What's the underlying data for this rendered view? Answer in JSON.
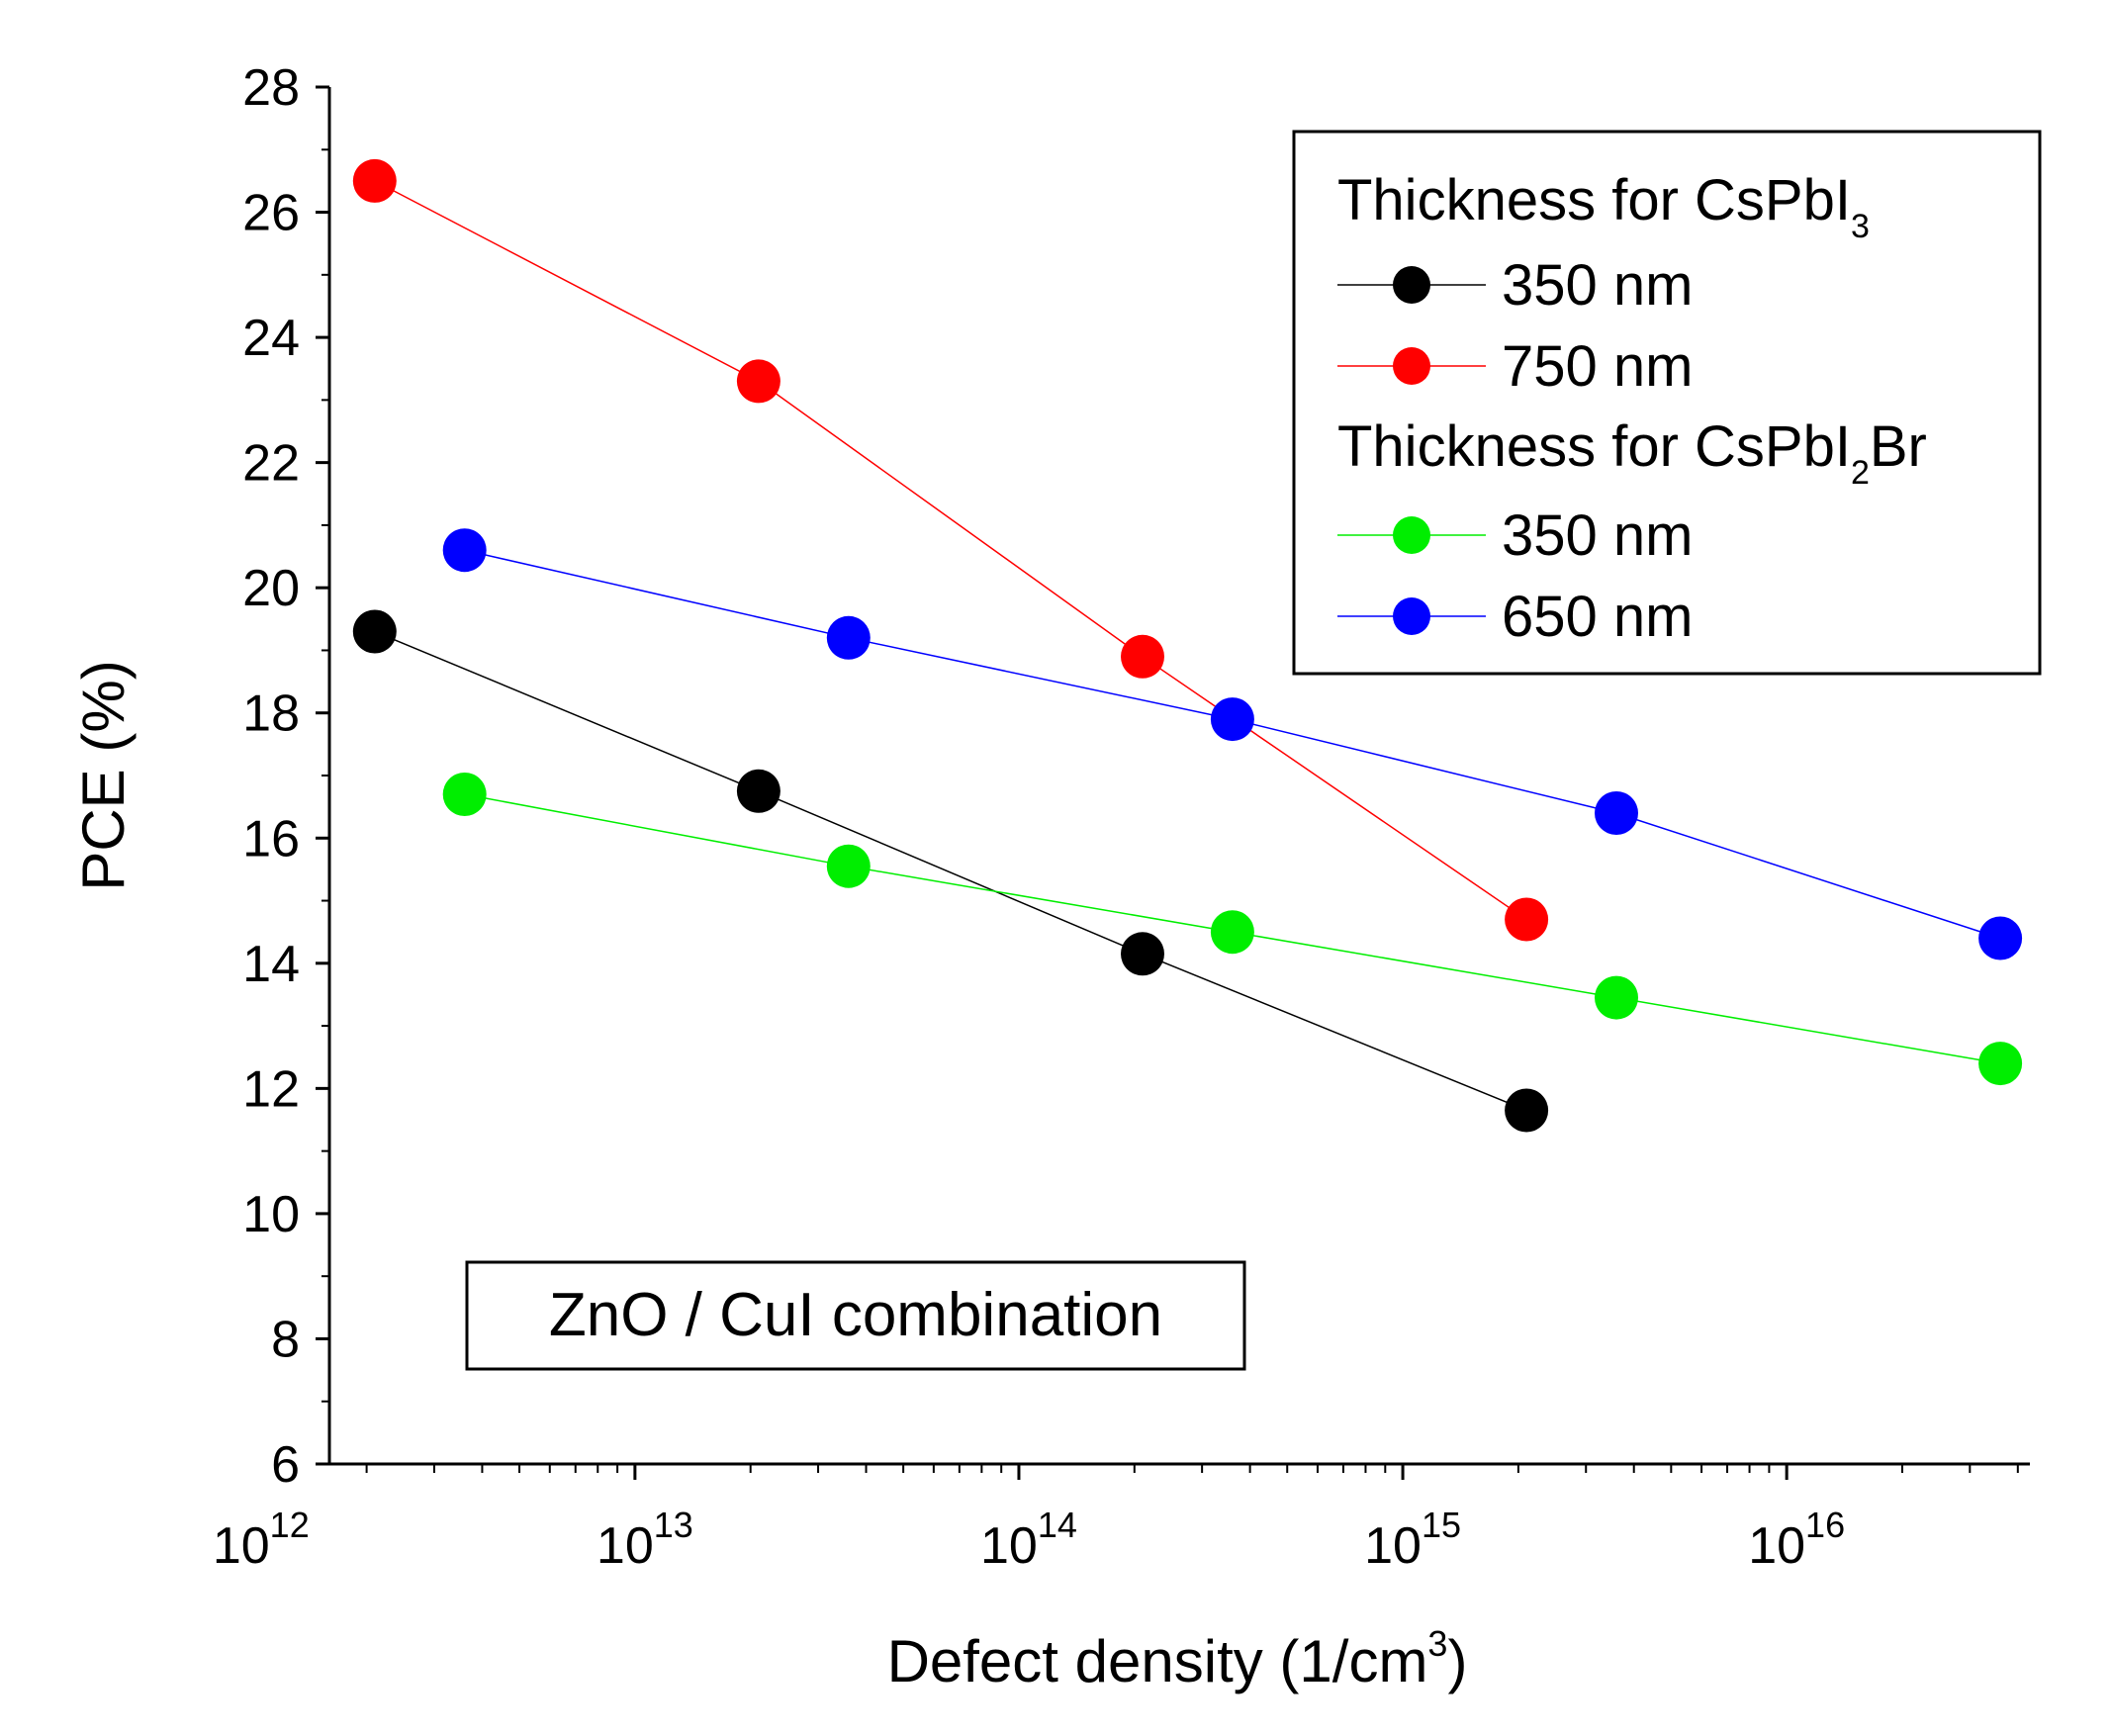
{
  "chart_data": {
    "type": "scatter",
    "xscale": "log",
    "xlim": [
      1600000000000.0,
      4.3e+16
    ],
    "ylim": [
      6,
      28
    ],
    "xlabel": {
      "main": "Defect density (1/cm",
      "sup": "3",
      "end": ")"
    },
    "ylabel": "PCE (%)",
    "y_ticks": [
      "6",
      "8",
      "10",
      "12",
      "14",
      "16",
      "18",
      "20",
      "22",
      "24",
      "26",
      "28"
    ],
    "x_ticks": [
      {
        "base": "10",
        "exp": "12"
      },
      {
        "base": "10",
        "exp": "13"
      },
      {
        "base": "10",
        "exp": "14"
      },
      {
        "base": "10",
        "exp": "15"
      },
      {
        "base": "10",
        "exp": "16"
      }
    ],
    "legend_groups": [
      {
        "title": {
          "main": "Thickness for CsPbI",
          "sub": "3",
          "end": ""
        }
      },
      {
        "title": {
          "main": "Thickness for CsPbI",
          "sub": "2",
          "end": "Br"
        }
      }
    ],
    "series": [
      {
        "name": "350 nm",
        "group": 0,
        "color": "#000000",
        "x": [
          2100000000000.0,
          21000000000000.0,
          210000000000000.0,
          2100000000000000.0
        ],
        "y": [
          19.3,
          16.75,
          14.15,
          11.65
        ]
      },
      {
        "name": "750 nm",
        "group": 0,
        "color": "#ff0000",
        "x": [
          2100000000000.0,
          21000000000000.0,
          210000000000000.0,
          2100000000000000.0
        ],
        "y": [
          26.5,
          23.3,
          18.9,
          14.7
        ]
      },
      {
        "name": "350 nm",
        "group": 1,
        "color": "#00ee00",
        "x": [
          3600000000000.0,
          36000000000000.0,
          360000000000000.0,
          3600000000000000.0,
          3.6e+16
        ],
        "y": [
          16.7,
          15.55,
          14.5,
          13.45,
          12.4
        ]
      },
      {
        "name": "650 nm",
        "group": 1,
        "color": "#0000ff",
        "x": [
          3600000000000.0,
          36000000000000.0,
          360000000000000.0,
          3600000000000000.0,
          3.6e+16
        ],
        "y": [
          20.6,
          19.2,
          17.9,
          16.4,
          14.4
        ]
      }
    ],
    "annotation": "ZnO / CuI combination"
  }
}
